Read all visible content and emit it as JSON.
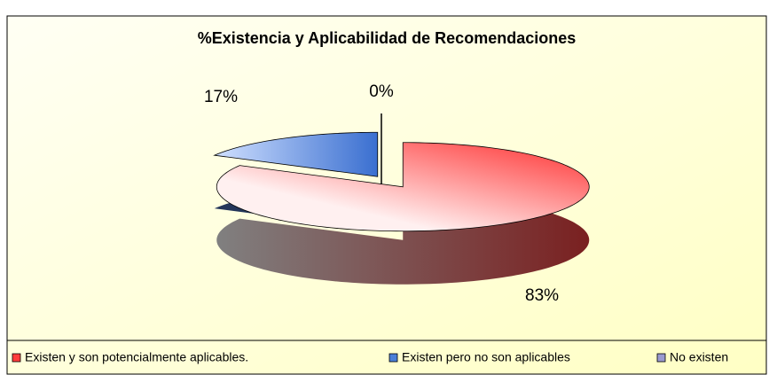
{
  "chart_data": {
    "type": "pie3d",
    "title": "%Existencia y Aplicabilidad de Recomendaciones",
    "categories": [
      "Existen y son potencialmente aplicables.",
      "Existen pero no son aplicables",
      "No existen"
    ],
    "values": [
      83,
      17,
      0
    ],
    "value_labels": [
      "83%",
      "17%",
      "0%"
    ],
    "colors": [
      "#ff3c3c",
      "#4a7fd8",
      "#9a9ad0"
    ],
    "legend": "bottom"
  }
}
